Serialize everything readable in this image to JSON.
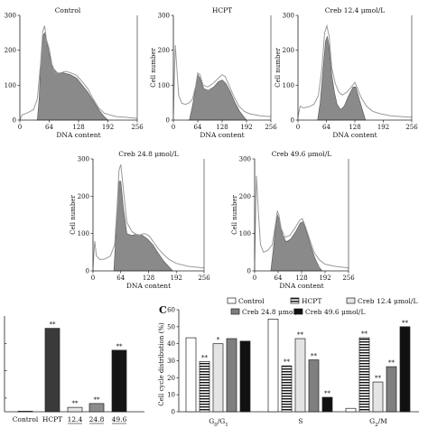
{
  "panel_c_letter": "C",
  "chart_data": [
    {
      "type": "area",
      "title": "Control",
      "xlabel": "DNA content",
      "ylabel": "",
      "xticks": [
        0,
        64,
        128,
        192,
        256
      ],
      "yticks": [
        0,
        100,
        200,
        300
      ],
      "xlim": [
        0,
        256
      ],
      "ylim": [
        0,
        300
      ],
      "outline": [
        [
          0,
          0
        ],
        [
          5,
          15
        ],
        [
          15,
          20
        ],
        [
          30,
          30
        ],
        [
          38,
          60
        ],
        [
          45,
          160
        ],
        [
          50,
          255
        ],
        [
          54,
          270
        ],
        [
          58,
          230
        ],
        [
          64,
          205
        ],
        [
          70,
          160
        ],
        [
          78,
          135
        ],
        [
          88,
          135
        ],
        [
          100,
          140
        ],
        [
          112,
          135
        ],
        [
          124,
          128
        ],
        [
          136,
          110
        ],
        [
          148,
          90
        ],
        [
          160,
          60
        ],
        [
          172,
          35
        ],
        [
          184,
          20
        ],
        [
          196,
          15
        ],
        [
          210,
          10
        ],
        [
          230,
          8
        ],
        [
          256,
          5
        ]
      ],
      "fill": [
        [
          38,
          0
        ],
        [
          42,
          60
        ],
        [
          46,
          180
        ],
        [
          50,
          240
        ],
        [
          54,
          250
        ],
        [
          58,
          230
        ],
        [
          64,
          190
        ],
        [
          72,
          150
        ],
        [
          82,
          135
        ],
        [
          96,
          135
        ],
        [
          110,
          130
        ],
        [
          124,
          120
        ],
        [
          136,
          100
        ],
        [
          148,
          80
        ],
        [
          160,
          55
        ],
        [
          172,
          30
        ],
        [
          184,
          10
        ],
        [
          192,
          0
        ]
      ]
    },
    {
      "type": "area",
      "title": "HCPT",
      "xlabel": "DNA content",
      "ylabel": "Cell number",
      "xticks": [
        0,
        64,
        128,
        192,
        256
      ],
      "yticks": [
        0,
        100,
        200,
        300
      ],
      "xlim": [
        0,
        256
      ],
      "ylim": [
        0,
        300
      ],
      "outline": [
        [
          0,
          20
        ],
        [
          5,
          215
        ],
        [
          9,
          150
        ],
        [
          14,
          70
        ],
        [
          22,
          48
        ],
        [
          32,
          45
        ],
        [
          42,
          50
        ],
        [
          50,
          60
        ],
        [
          58,
          95
        ],
        [
          64,
          135
        ],
        [
          70,
          130
        ],
        [
          78,
          100
        ],
        [
          90,
          95
        ],
        [
          104,
          105
        ],
        [
          118,
          120
        ],
        [
          128,
          130
        ],
        [
          136,
          125
        ],
        [
          148,
          95
        ],
        [
          160,
          65
        ],
        [
          172,
          40
        ],
        [
          186,
          25
        ],
        [
          200,
          18
        ],
        [
          230,
          12
        ],
        [
          256,
          10
        ]
      ],
      "fill": [
        [
          42,
          0
        ],
        [
          50,
          40
        ],
        [
          58,
          90
        ],
        [
          64,
          130
        ],
        [
          70,
          120
        ],
        [
          80,
          90
        ],
        [
          92,
          85
        ],
        [
          106,
          95
        ],
        [
          118,
          110
        ],
        [
          128,
          115
        ],
        [
          138,
          105
        ],
        [
          150,
          80
        ],
        [
          162,
          50
        ],
        [
          174,
          25
        ],
        [
          186,
          8
        ],
        [
          192,
          0
        ]
      ]
    },
    {
      "type": "area",
      "title": "Creb 12.4 μmol/L",
      "xlabel": "DNA content",
      "ylabel": "Cell number",
      "xticks": [
        0,
        64,
        128,
        192,
        256
      ],
      "yticks": [
        0,
        100,
        200,
        300
      ],
      "xlim": [
        0,
        256
      ],
      "ylim": [
        0,
        300
      ],
      "outline": [
        [
          0,
          10
        ],
        [
          5,
          40
        ],
        [
          12,
          35
        ],
        [
          24,
          38
        ],
        [
          36,
          45
        ],
        [
          46,
          70
        ],
        [
          54,
          150
        ],
        [
          60,
          250
        ],
        [
          65,
          270
        ],
        [
          70,
          240
        ],
        [
          76,
          150
        ],
        [
          84,
          105
        ],
        [
          92,
          80
        ],
        [
          100,
          72
        ],
        [
          110,
          80
        ],
        [
          120,
          95
        ],
        [
          128,
          108
        ],
        [
          134,
          90
        ],
        [
          142,
          65
        ],
        [
          154,
          40
        ],
        [
          168,
          25
        ],
        [
          185,
          18
        ],
        [
          210,
          12
        ],
        [
          256,
          8
        ]
      ],
      "fill": [
        [
          44,
          0
        ],
        [
          50,
          50
        ],
        [
          56,
          140
        ],
        [
          62,
          225
        ],
        [
          66,
          240
        ],
        [
          70,
          210
        ],
        [
          76,
          130
        ],
        [
          82,
          80
        ],
        [
          88,
          45
        ],
        [
          96,
          30
        ],
        [
          104,
          40
        ],
        [
          114,
          70
        ],
        [
          124,
          95
        ],
        [
          130,
          95
        ],
        [
          138,
          60
        ],
        [
          146,
          25
        ],
        [
          152,
          0
        ]
      ]
    },
    {
      "type": "area",
      "title": "Creb 24.8 μmol/L",
      "xlabel": "DNA content",
      "ylabel": "Cell number",
      "xticks": [
        0,
        64,
        128,
        192,
        256
      ],
      "yticks": [
        0,
        100,
        200,
        300
      ],
      "xlim": [
        0,
        256
      ],
      "ylim": [
        0,
        300
      ],
      "outline": [
        [
          0,
          10
        ],
        [
          4,
          80
        ],
        [
          8,
          40
        ],
        [
          16,
          30
        ],
        [
          28,
          32
        ],
        [
          40,
          40
        ],
        [
          50,
          70
        ],
        [
          56,
          180
        ],
        [
          60,
          270
        ],
        [
          64,
          285
        ],
        [
          70,
          220
        ],
        [
          78,
          130
        ],
        [
          90,
          105
        ],
        [
          104,
          95
        ],
        [
          118,
          100
        ],
        [
          128,
          95
        ],
        [
          138,
          80
        ],
        [
          150,
          60
        ],
        [
          162,
          45
        ],
        [
          176,
          30
        ],
        [
          192,
          20
        ],
        [
          220,
          12
        ],
        [
          256,
          8
        ]
      ],
      "fill": [
        [
          48,
          0
        ],
        [
          52,
          80
        ],
        [
          56,
          180
        ],
        [
          60,
          240
        ],
        [
          64,
          240
        ],
        [
          70,
          170
        ],
        [
          78,
          100
        ],
        [
          88,
          95
        ],
        [
          100,
          98
        ],
        [
          114,
          95
        ],
        [
          126,
          85
        ],
        [
          138,
          70
        ],
        [
          150,
          48
        ],
        [
          162,
          28
        ],
        [
          174,
          12
        ],
        [
          184,
          0
        ]
      ]
    },
    {
      "type": "area",
      "title": "Creb 49.6 μmol/L",
      "xlabel": "DNA content",
      "ylabel": "Cell number",
      "xticks": [
        0,
        64,
        128,
        192,
        256
      ],
      "yticks": [
        0,
        100,
        200,
        300
      ],
      "xlim": [
        0,
        256
      ],
      "ylim": [
        0,
        300
      ],
      "outline": [
        [
          0,
          30
        ],
        [
          5,
          255
        ],
        [
          10,
          160
        ],
        [
          16,
          70
        ],
        [
          24,
          50
        ],
        [
          36,
          55
        ],
        [
          48,
          70
        ],
        [
          56,
          120
        ],
        [
          62,
          160
        ],
        [
          66,
          150
        ],
        [
          72,
          115
        ],
        [
          82,
          90
        ],
        [
          96,
          95
        ],
        [
          110,
          115
        ],
        [
          122,
          135
        ],
        [
          130,
          140
        ],
        [
          138,
          120
        ],
        [
          150,
          85
        ],
        [
          162,
          50
        ],
        [
          176,
          30
        ],
        [
          192,
          18
        ],
        [
          220,
          12
        ],
        [
          256,
          8
        ]
      ],
      "fill": [
        [
          44,
          0
        ],
        [
          50,
          50
        ],
        [
          56,
          110
        ],
        [
          62,
          150
        ],
        [
          68,
          135
        ],
        [
          76,
          95
        ],
        [
          86,
          78
        ],
        [
          98,
          85
        ],
        [
          112,
          105
        ],
        [
          124,
          128
        ],
        [
          132,
          132
        ],
        [
          140,
          110
        ],
        [
          152,
          70
        ],
        [
          164,
          35
        ],
        [
          176,
          10
        ],
        [
          184,
          0
        ]
      ]
    },
    {
      "type": "bar",
      "categories": [
        "Control",
        "HCPT",
        "12.4",
        "24.8",
        "49.6"
      ],
      "underlined_categories": [
        false,
        false,
        true,
        true,
        true
      ],
      "values": [
        0.2,
        30.5,
        1.6,
        3.0,
        22.5
      ],
      "ylim": [
        0,
        35
      ],
      "annotations": [
        "",
        "**",
        "**",
        "**",
        "**"
      ],
      "colors": [
        "#ffffff",
        "#3a3a3a",
        "#e6e6e6",
        "#8c8c8c",
        "#151515"
      ]
    },
    {
      "type": "bar",
      "ylabel": "Cell cycle distribution (%)",
      "ylim": [
        0,
        60
      ],
      "yticks": [
        0,
        10,
        20,
        30,
        40,
        50,
        60
      ],
      "groups": [
        "G0/G1",
        "S",
        "G2/M"
      ],
      "legend": [
        "Control",
        "HCPT",
        "Creb 12.4 μmol/L",
        "Creb 24.8 μmol/L",
        "Creb 49.6 μmol/L"
      ],
      "series": [
        {
          "name": "Control",
          "values": [
            43.5,
            54.5,
            2.0
          ],
          "annotations": [
            "",
            "",
            ""
          ]
        },
        {
          "name": "HCPT",
          "values": [
            29.5,
            27.0,
            43.5
          ],
          "annotations": [
            "**",
            "**",
            "**"
          ]
        },
        {
          "name": "Creb 12.4 μmol/L",
          "values": [
            40.0,
            43.0,
            17.5
          ],
          "annotations": [
            "*",
            "**",
            "**"
          ]
        },
        {
          "name": "Creb 24.8 μmol/L",
          "values": [
            43.0,
            30.5,
            26.5
          ],
          "annotations": [
            "",
            "**",
            "**"
          ]
        },
        {
          "name": "Creb 49.6 μmol/L",
          "values": [
            41.5,
            8.5,
            50.0
          ],
          "annotations": [
            "",
            "**",
            "**"
          ]
        }
      ]
    }
  ]
}
